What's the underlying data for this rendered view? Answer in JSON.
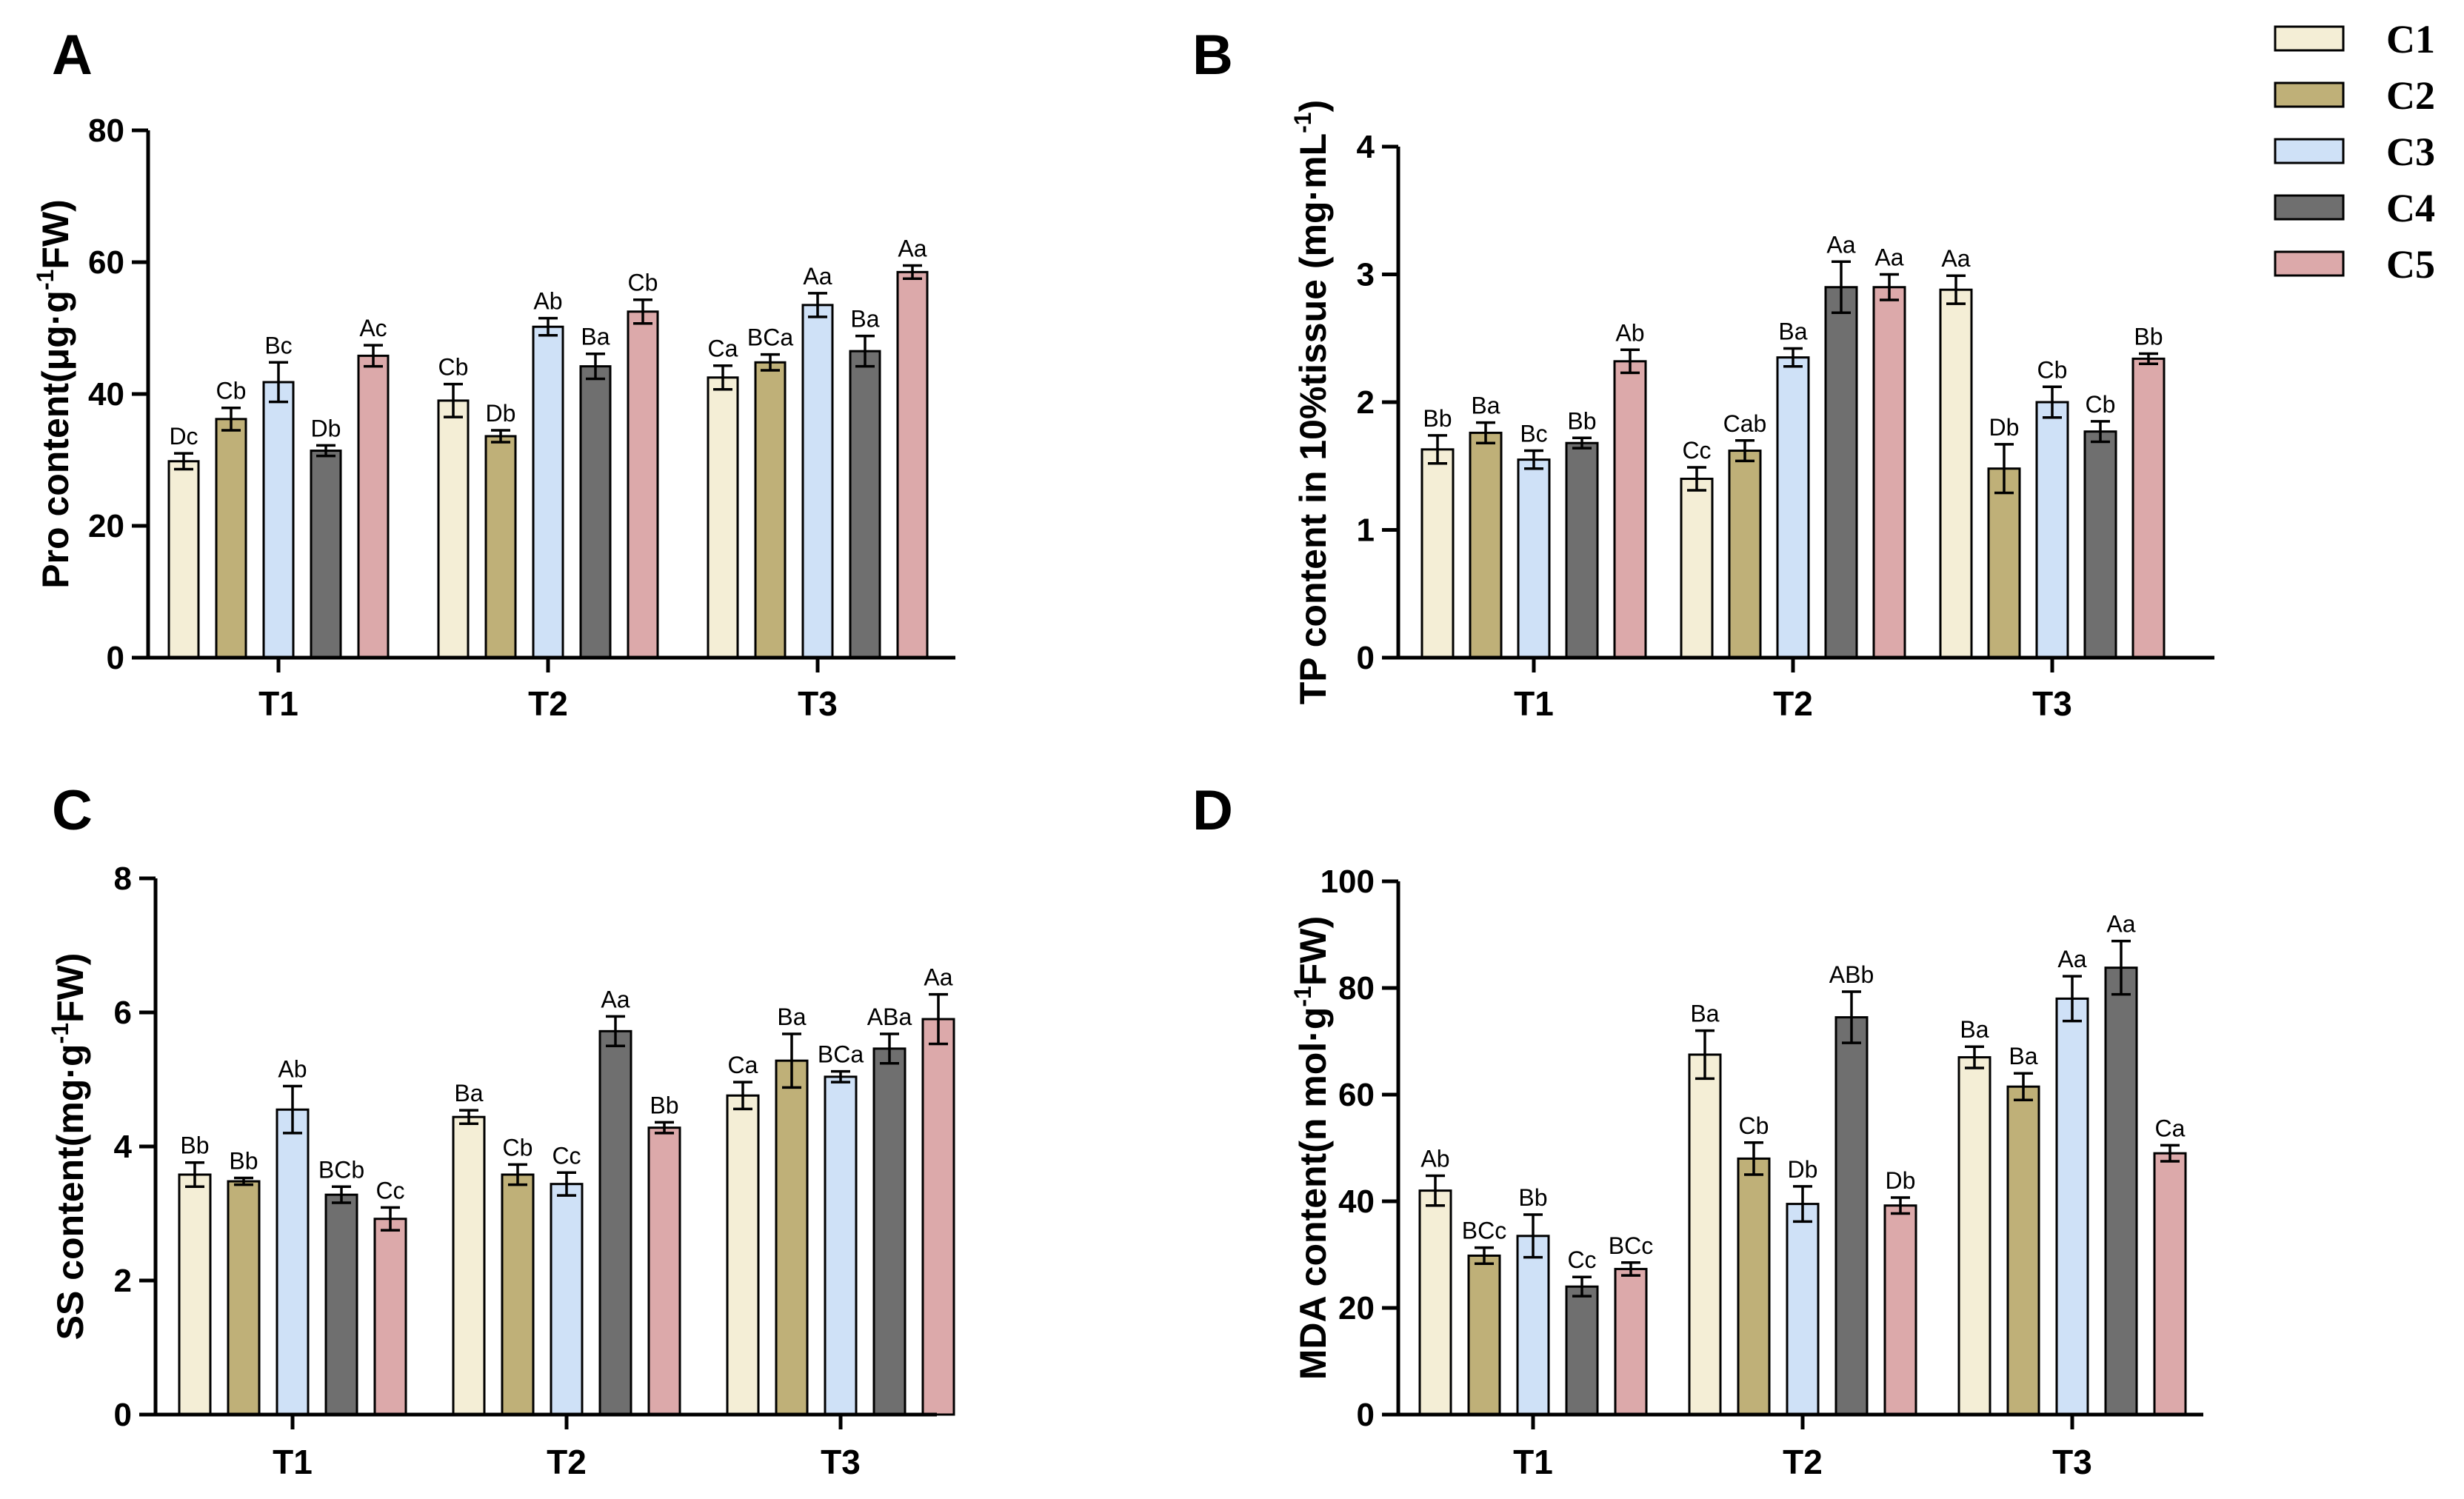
{
  "legend": [
    {
      "label": "C1",
      "color": "#f4eed6"
    },
    {
      "label": "C2",
      "color": "#bfb078"
    },
    {
      "label": "C3",
      "color": "#cfe1f7"
    },
    {
      "label": "C4",
      "color": "#6f6f6f"
    },
    {
      "label": "C5",
      "color": "#dca9aa"
    }
  ],
  "chart_data": [
    {
      "panel": "A",
      "type": "bar",
      "ylabel_main": "Pro content(μg·g",
      "ylabel_sup": "-1",
      "ylabel_end": "FW)",
      "categories": [
        "T1",
        "T2",
        "T3"
      ],
      "ylim": [
        0,
        80
      ],
      "yticks": [
        0,
        20,
        40,
        60,
        80
      ],
      "series": [
        {
          "name": "C1",
          "values": [
            29.8,
            39.0,
            42.5
          ],
          "errors": [
            1.2,
            2.5,
            1.8
          ],
          "labels": [
            "Dc",
            "Cb",
            "Ca"
          ]
        },
        {
          "name": "C2",
          "values": [
            36.2,
            33.6,
            44.8
          ],
          "errors": [
            1.7,
            0.9,
            1.2
          ],
          "labels": [
            "Cb",
            "Db",
            "BCa"
          ]
        },
        {
          "name": "C3",
          "values": [
            41.8,
            50.2,
            53.5
          ],
          "errors": [
            3.0,
            1.3,
            1.8
          ],
          "labels": [
            "Bc",
            "Ab",
            "Aa"
          ]
        },
        {
          "name": "C4",
          "values": [
            31.4,
            44.2,
            46.5
          ],
          "errors": [
            0.8,
            1.9,
            2.3
          ],
          "labels": [
            "Db",
            "Ba",
            "Ba"
          ]
        },
        {
          "name": "C5",
          "values": [
            45.8,
            52.5,
            58.5
          ],
          "errors": [
            1.6,
            1.8,
            1.0
          ],
          "labels": [
            "Ac",
            "Cb",
            "Aa"
          ]
        }
      ]
    },
    {
      "panel": "B",
      "type": "bar",
      "ylabel_main": "TP content in 10%tissue (mg·mL",
      "ylabel_sup": "-1",
      "ylabel_end": ")",
      "categories": [
        "T1",
        "T2",
        "T3"
      ],
      "ylim": [
        0,
        4
      ],
      "yticks": [
        0,
        1,
        2,
        3,
        4
      ],
      "series": [
        {
          "name": "C1",
          "values": [
            1.63,
            1.4,
            2.88
          ],
          "errors": [
            0.11,
            0.09,
            0.11
          ],
          "labels": [
            "Bb",
            "Cc",
            "Aa"
          ]
        },
        {
          "name": "C2",
          "values": [
            1.76,
            1.62,
            1.48
          ],
          "errors": [
            0.08,
            0.08,
            0.19
          ],
          "labels": [
            "Ba",
            "Cab",
            "Db"
          ]
        },
        {
          "name": "C3",
          "values": [
            1.55,
            2.35,
            2.0
          ],
          "errors": [
            0.07,
            0.07,
            0.12
          ],
          "labels": [
            "Bc",
            "Ba",
            "Cb"
          ]
        },
        {
          "name": "C4",
          "values": [
            1.68,
            2.9,
            1.77
          ],
          "errors": [
            0.04,
            0.2,
            0.08
          ],
          "labels": [
            "Bb",
            "Aa",
            "Cb"
          ]
        },
        {
          "name": "C5",
          "values": [
            2.32,
            2.9,
            2.34
          ],
          "errors": [
            0.09,
            0.1,
            0.04
          ],
          "labels": [
            "Ab",
            "Aa",
            "Bb"
          ]
        }
      ]
    },
    {
      "panel": "C",
      "type": "bar",
      "ylabel_main": "SS content(mg·g",
      "ylabel_sup": "-1",
      "ylabel_end": "FW)",
      "categories": [
        "T1",
        "T2",
        "T3"
      ],
      "ylim": [
        0,
        8
      ],
      "yticks": [
        0,
        2,
        4,
        6,
        8
      ],
      "series": [
        {
          "name": "C1",
          "values": [
            3.58,
            4.44,
            4.76
          ],
          "errors": [
            0.18,
            0.1,
            0.2
          ],
          "labels": [
            "Bb",
            "Ba",
            "Ca"
          ]
        },
        {
          "name": "C2",
          "values": [
            3.48,
            3.58,
            5.28
          ],
          "errors": [
            0.05,
            0.15,
            0.4
          ],
          "labels": [
            "Bb",
            "Cb",
            "Ba"
          ]
        },
        {
          "name": "C3",
          "values": [
            4.55,
            3.44,
            5.04
          ],
          "errors": [
            0.35,
            0.17,
            0.08
          ],
          "labels": [
            "Ab",
            "Cc",
            "BCa"
          ]
        },
        {
          "name": "C4",
          "values": [
            3.28,
            5.72,
            5.46
          ],
          "errors": [
            0.12,
            0.22,
            0.22
          ],
          "labels": [
            "BCb",
            "Aa",
            "ABa"
          ]
        },
        {
          "name": "C5",
          "values": [
            2.92,
            4.28,
            5.9
          ],
          "errors": [
            0.17,
            0.08,
            0.37
          ],
          "labels": [
            "Cc",
            "Bb",
            "Aa"
          ]
        }
      ]
    },
    {
      "panel": "D",
      "type": "bar",
      "ylabel_main": "MDA content(n mol·g",
      "ylabel_sup": "-1",
      "ylabel_end": "FW)",
      "categories": [
        "T1",
        "T2",
        "T3"
      ],
      "ylim": [
        0,
        100
      ],
      "yticks": [
        0,
        20,
        40,
        60,
        80,
        100
      ],
      "series": [
        {
          "name": "C1",
          "values": [
            42.0,
            67.5,
            67.0
          ],
          "errors": [
            2.8,
            4.5,
            2.0
          ],
          "labels": [
            "Ab",
            "Ba",
            "Ba"
          ]
        },
        {
          "name": "C2",
          "values": [
            29.8,
            48.0,
            61.5
          ],
          "errors": [
            1.5,
            3.0,
            2.5
          ],
          "labels": [
            "BCc",
            "Cb",
            "Ba"
          ]
        },
        {
          "name": "C3",
          "values": [
            33.5,
            39.5,
            78.0
          ],
          "errors": [
            4.0,
            3.3,
            4.2
          ],
          "labels": [
            "Bb",
            "Db",
            "Aa"
          ]
        },
        {
          "name": "C4",
          "values": [
            24.0,
            74.5,
            83.8
          ],
          "errors": [
            1.8,
            4.8,
            5.0
          ],
          "labels": [
            "Cc",
            "ABb",
            "Aa"
          ]
        },
        {
          "name": "C5",
          "values": [
            27.3,
            39.2,
            49.0
          ],
          "errors": [
            1.2,
            1.5,
            1.5
          ],
          "labels": [
            "BCc",
            "Db",
            "Ca"
          ]
        }
      ]
    }
  ]
}
